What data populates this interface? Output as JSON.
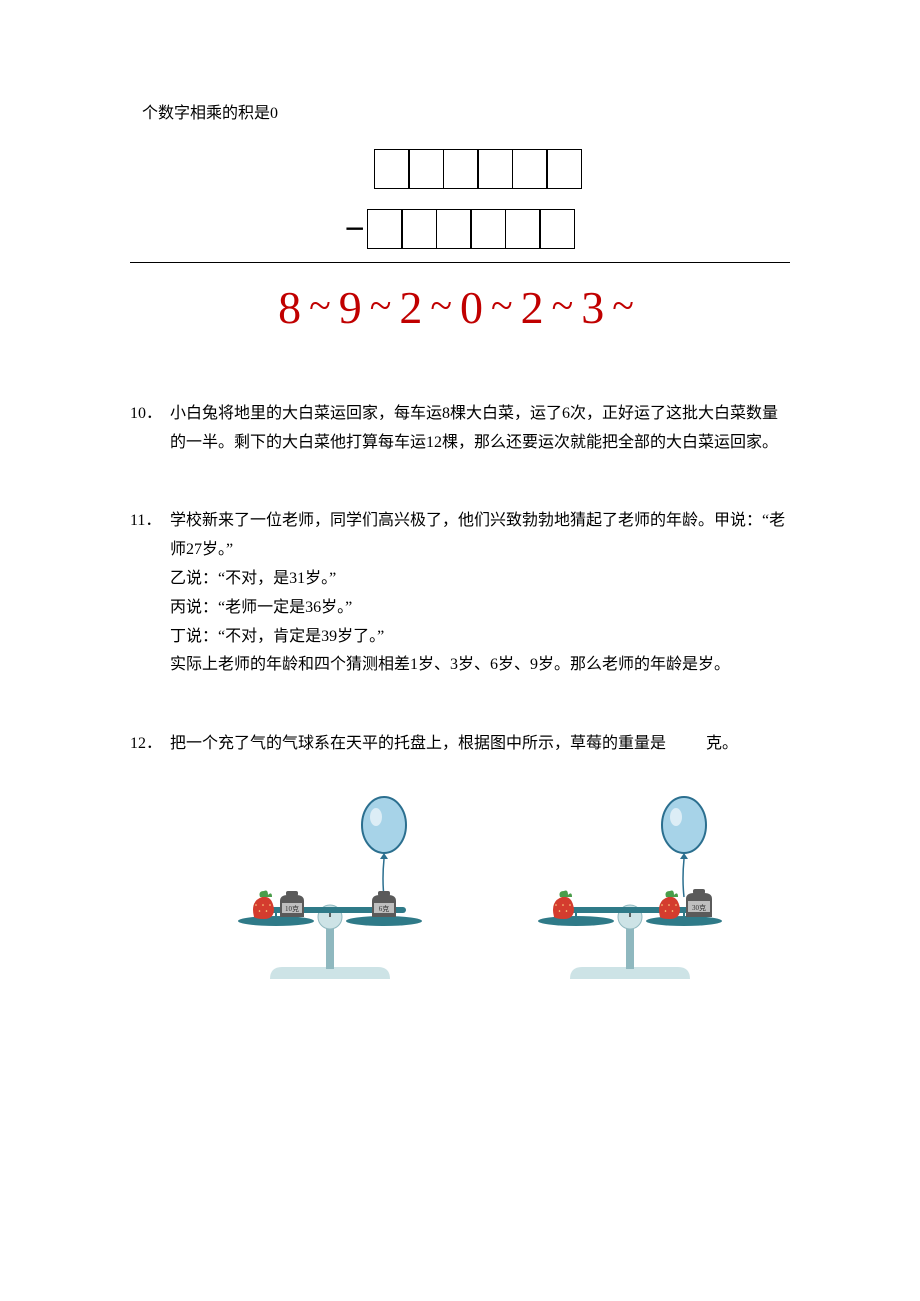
{
  "fragment_top": "个数字相乘的积是0",
  "subtraction": {
    "top_box_count": 6,
    "bottom_box_count": 6,
    "minus_sign": "−",
    "result_digits": [
      "8",
      "9",
      "2",
      "0",
      "2",
      "3"
    ],
    "result_color": "#c00000",
    "box_border_color": "#000000",
    "digit_fontsize": 46
  },
  "q10": {
    "num": "10．",
    "text": "小白兔将地里的大白菜运回家，每车运8棵大白菜，运了6次，正好运了这批大白菜数量的一半。剩下的大白菜他打算每车运12棵，那么还要运次就能把全部的大白菜运回家。"
  },
  "q11": {
    "num": "11．",
    "intro": "学校新来了一位老师，同学们高兴极了，他们兴致勃勃地猜起了老师的年龄。甲说：“老师27岁。”",
    "line_b": "乙说：“不对，是31岁。”",
    "line_c": "丙说：“老师一定是36岁。”",
    "line_d": "丁说：“不对，肯定是39岁了。”",
    "line_e": "实际上老师的年龄和四个猜测相差1岁、3岁、6岁、9岁。那么老师的年龄是岁。"
  },
  "q12": {
    "num": "12．",
    "text_pre": "把一个充了气的气球系在天平的托盘上，根据图中所示，草莓的重量是",
    "text_post": "克。",
    "scales": {
      "balloon_color": "#a7d3e8",
      "balloon_outline": "#2b6f8f",
      "strawberry_body": "#d43c2e",
      "strawberry_leaf": "#4a9d4a",
      "weight_body": "#5a5a5a",
      "weight_label_bg": "#bfbfbf",
      "pan_color": "#2f7a88",
      "base_color": "#cde3e6",
      "column_color": "#8fb8bf",
      "left": {
        "left_weight_label": "10克",
        "right_weight_label": "6克"
      },
      "right": {
        "right_weight_label": "30克"
      }
    }
  }
}
